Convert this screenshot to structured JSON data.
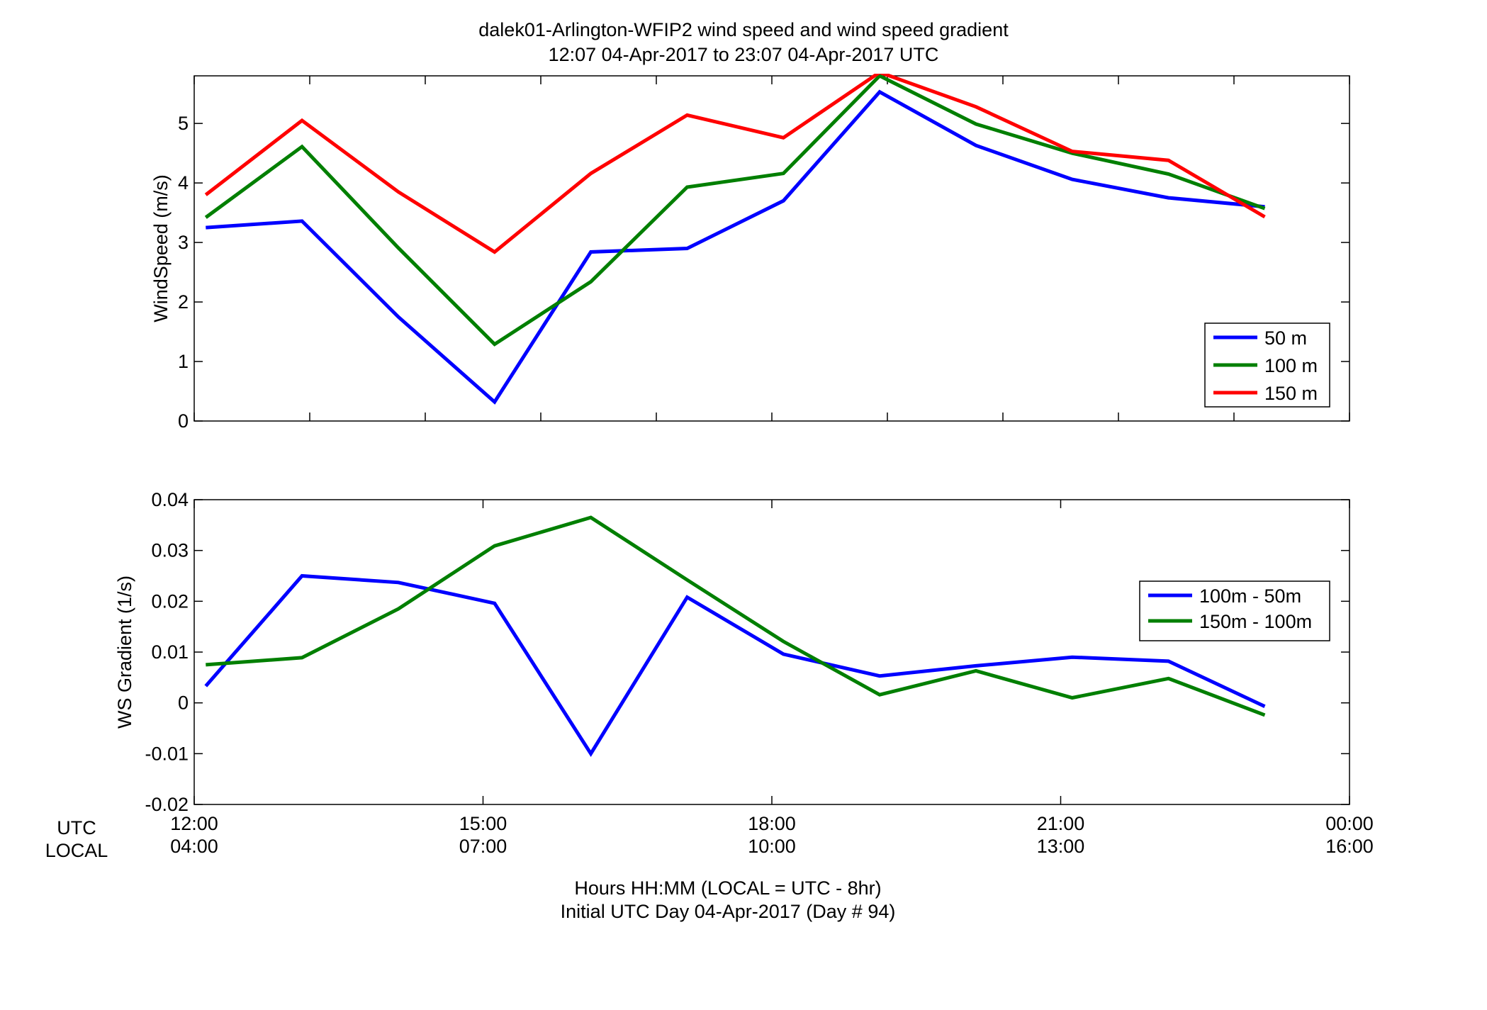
{
  "figure": {
    "title_line1": "dalek01-Arlington-WFIP2  wind speed and wind speed gradient",
    "title_line2": "12:07 04-Apr-2017 to 23:07 04-Apr-2017  UTC",
    "xlabel_line1": "Hours HH:MM  (LOCAL = UTC - 8hr)",
    "xlabel_line2": "Initial UTC Day 04-Apr-2017 (Day # 94)",
    "utc_row_label": "UTC",
    "local_row_label": "LOCAL",
    "x_ticks_utc": [
      "12:00",
      "15:00",
      "18:00",
      "21:00",
      "00:00"
    ],
    "x_ticks_local": [
      "04:00",
      "07:00",
      "10:00",
      "13:00",
      "16:00"
    ]
  },
  "chart_data": [
    {
      "type": "line",
      "ylabel": "WindSpeed (m/s)",
      "xlim": [
        12,
        24
      ],
      "ylim": [
        0,
        5.8
      ],
      "yticks": [
        0,
        1,
        2,
        3,
        4,
        5
      ],
      "ytick_labels": [
        "0",
        "1",
        "2",
        "3",
        "4",
        "5"
      ],
      "xticks": [
        12,
        13.2,
        14.4,
        15.6,
        16.8,
        18,
        19.2,
        20.4,
        21.6,
        22.8,
        24
      ],
      "legend_position": "bottom-right",
      "x": [
        12.12,
        13.12,
        14.12,
        15.12,
        16.12,
        17.12,
        18.12,
        19.12,
        20.12,
        21.12,
        22.12,
        23.12
      ],
      "series": [
        {
          "name": "50 m",
          "color": "#0000ff",
          "values": [
            3.25,
            3.36,
            1.75,
            0.32,
            2.84,
            2.9,
            3.7,
            5.53,
            4.63,
            4.06,
            3.75,
            3.6
          ]
        },
        {
          "name": "100 m",
          "color": "#007f00",
          "values": [
            3.42,
            4.61,
            2.91,
            1.29,
            2.34,
            3.93,
            4.16,
            5.8,
            4.99,
            4.5,
            4.15,
            3.57
          ]
        },
        {
          "name": "150 m",
          "color": "#ff0000",
          "values": [
            3.8,
            5.05,
            3.85,
            2.84,
            4.16,
            5.14,
            4.76,
            5.86,
            5.28,
            4.53,
            4.38,
            3.43
          ]
        }
      ]
    },
    {
      "type": "line",
      "ylabel": "WS Gradient (1/s)",
      "xlim": [
        12,
        24
      ],
      "ylim": [
        -0.02,
        0.04
      ],
      "yticks": [
        -0.02,
        -0.01,
        0,
        0.01,
        0.02,
        0.03,
        0.04
      ],
      "ytick_labels": [
        "-0.02",
        "-0.01",
        "0",
        "0.01",
        "0.02",
        "0.03",
        "0.04"
      ],
      "xticks": [
        12,
        15,
        18,
        21,
        24
      ],
      "legend_position": "right",
      "x": [
        12.12,
        13.12,
        14.12,
        15.12,
        16.12,
        17.12,
        18.12,
        19.12,
        20.12,
        21.12,
        22.12,
        23.12
      ],
      "series": [
        {
          "name": "100m - 50m",
          "color": "#0000ff",
          "values": [
            0.0033,
            0.025,
            0.0237,
            0.0196,
            -0.01,
            0.0208,
            0.0096,
            0.0053,
            0.0073,
            0.009,
            0.0082,
            -0.0007
          ]
        },
        {
          "name": "150m - 100m",
          "color": "#007f00",
          "values": [
            0.0075,
            0.0089,
            0.0185,
            0.0309,
            0.0365,
            0.0242,
            0.0121,
            0.0016,
            0.0063,
            0.001,
            0.0048,
            -0.0024
          ]
        }
      ]
    }
  ]
}
